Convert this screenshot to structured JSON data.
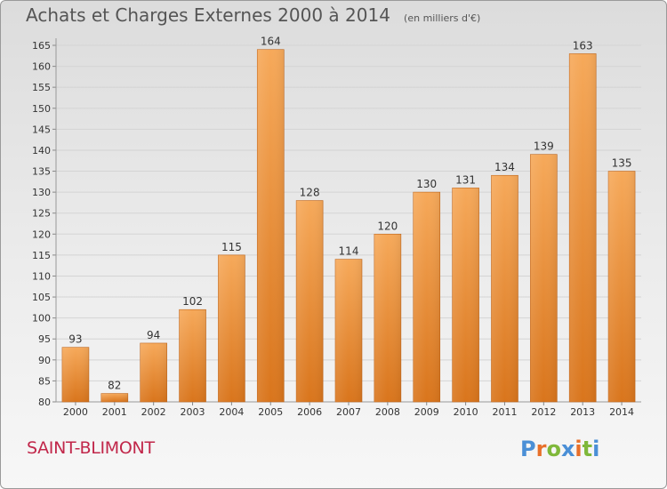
{
  "header": {
    "title": "Achats et Charges Externes 2000 à 2014",
    "unit_note": "(en milliers d'€)"
  },
  "commune": "SAINT-BLIMONT",
  "logo": {
    "text": "Proxiti",
    "letter_colors": [
      "#4a8fd6",
      "#e8702a",
      "#7fb83a",
      "#4a8fd6",
      "#e8702a",
      "#7fb83a",
      "#4a8fd6"
    ]
  },
  "colors": {
    "bar_light": "#f6a95a",
    "bar_dark": "#d9751c",
    "grid": "#d4d4d4",
    "axis_text": "#333333"
  },
  "chart_data": {
    "type": "bar",
    "categories": [
      "2000",
      "2001",
      "2002",
      "2003",
      "2004",
      "2005",
      "2006",
      "2007",
      "2008",
      "2009",
      "2010",
      "2011",
      "2012",
      "2013",
      "2014"
    ],
    "values": [
      93,
      82,
      94,
      102,
      115,
      164,
      128,
      114,
      120,
      130,
      131,
      134,
      139,
      163,
      135
    ],
    "title": "Achats et Charges Externes 2000 à 2014",
    "ylim": [
      80,
      165
    ],
    "yticks": [
      80,
      85,
      90,
      95,
      100,
      105,
      110,
      115,
      120,
      125,
      130,
      135,
      140,
      145,
      150,
      155,
      160,
      165
    ],
    "grid": true,
    "data_labels": true
  }
}
